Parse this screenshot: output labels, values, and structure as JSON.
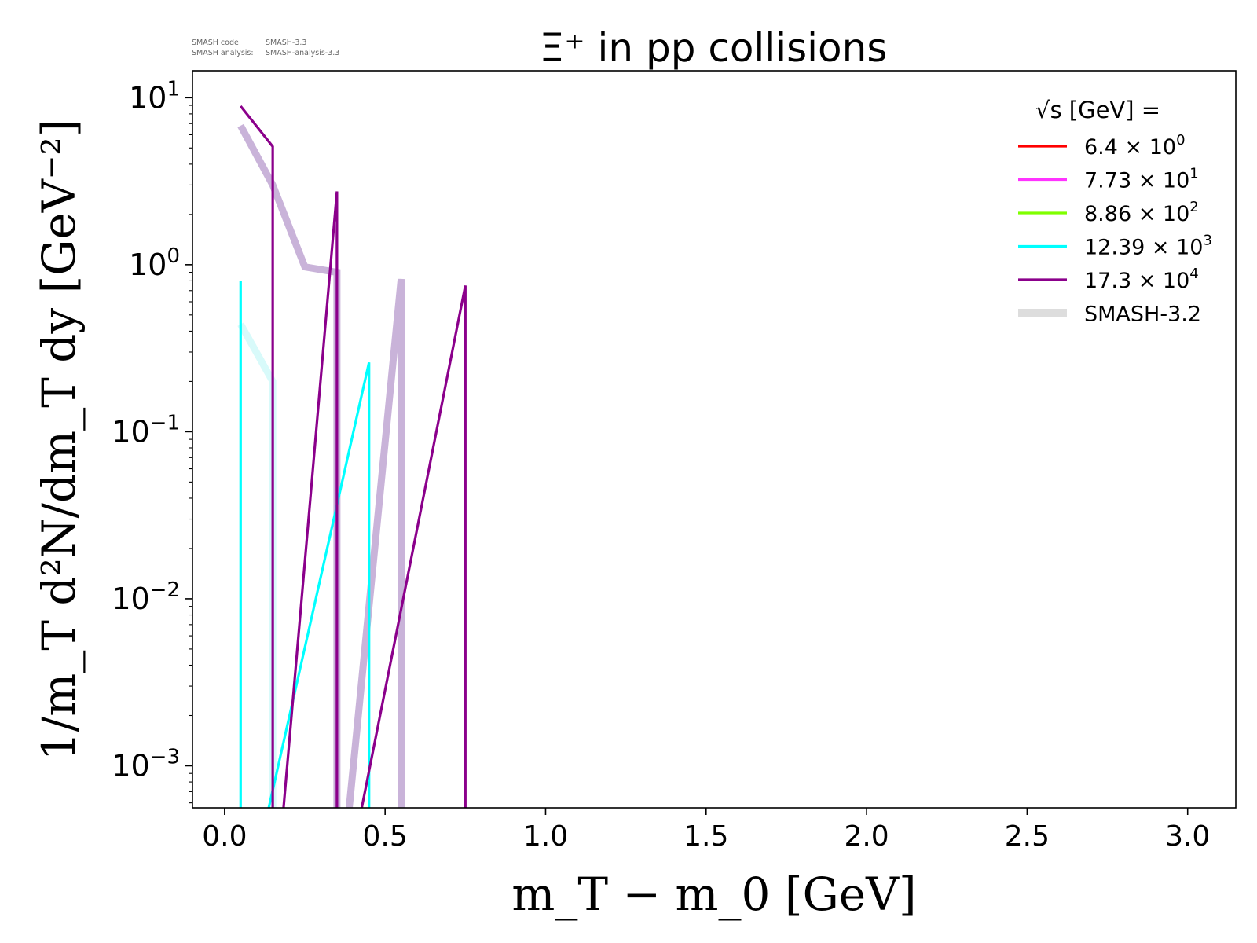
{
  "info": {
    "code_label": "SMASH code:",
    "code_value": "SMASH-3.3",
    "analysis_label": "SMASH analysis:",
    "analysis_value": "SMASH-analysis-3.3"
  },
  "chart_data": {
    "type": "line",
    "title": "Ξ⁺ in pp collisions",
    "xlabel": "m_T − m_0 [GeV]",
    "ylabel": "1/m_T d²N/dm_T dy [GeV⁻²]",
    "xlim": [
      -0.1,
      3.15
    ],
    "ylim": [
      0.00056,
      14.5
    ],
    "yscale": "log",
    "grid": false,
    "legend_placement": "top-right",
    "legend_title": "√s [GeV] =",
    "x_ticks": [
      {
        "value": 0.0,
        "label": "0.0"
      },
      {
        "value": 0.5,
        "label": "0.5"
      },
      {
        "value": 1.0,
        "label": "1.0"
      },
      {
        "value": 1.5,
        "label": "1.5"
      },
      {
        "value": 2.0,
        "label": "2.0"
      },
      {
        "value": 2.5,
        "label": "2.5"
      },
      {
        "value": 3.0,
        "label": "3.0"
      }
    ],
    "y_ticks": [
      {
        "value": 10,
        "base": "10",
        "exp": "1"
      },
      {
        "value": 1,
        "base": "10",
        "exp": "0"
      },
      {
        "value": 0.1,
        "base": "10",
        "exp": "−1"
      },
      {
        "value": 0.01,
        "base": "10",
        "exp": "−2"
      },
      {
        "value": 0.001,
        "base": "10",
        "exp": "−3"
      }
    ],
    "series": [
      {
        "name": "6.4 × 10⁰",
        "mantissa": "6.4",
        "exp": "0",
        "color": "#ff0000",
        "kind": "current",
        "points": []
      },
      {
        "name": "7.73 × 10¹",
        "mantissa": "7.73",
        "exp": "1",
        "color": "#ff33ff",
        "kind": "current",
        "points": []
      },
      {
        "name": "8.86 × 10²",
        "mantissa": "8.86",
        "exp": "2",
        "color": "#7fff00",
        "kind": "current",
        "points": []
      },
      {
        "name": "12.39 × 10³",
        "mantissa": "12.39",
        "exp": "3",
        "color": "#00ffff",
        "kind": "current",
        "points": [
          [
            0.05,
            0.8
          ],
          [
            0.05,
            0.0001
          ],
          [
            0.45,
            0.26
          ],
          [
            0.45,
            0.0001
          ]
        ]
      },
      {
        "name": "17.3 × 10⁴",
        "mantissa": "17.3",
        "exp": "4",
        "color": "#8b008b",
        "kind": "current",
        "points": [
          [
            0.05,
            8.9
          ],
          [
            0.15,
            5.1
          ],
          [
            0.15,
            0.0001
          ],
          [
            0.35,
            2.75
          ],
          [
            0.35,
            0.0001
          ],
          [
            0.75,
            0.75
          ],
          [
            0.75,
            0.0001
          ]
        ]
      }
    ],
    "reference_series": [
      {
        "name": "SMASH-3.2",
        "color": "#c9b3d9",
        "linewidth": 9,
        "points": [
          [
            0.05,
            6.8
          ],
          [
            0.15,
            3.0
          ],
          [
            0.25,
            0.97
          ],
          [
            0.35,
            0.9
          ],
          [
            0.35,
            0.0001
          ],
          [
            0.55,
            0.82
          ],
          [
            0.55,
            0.0001
          ]
        ]
      },
      {
        "name": "SMASH-3.2",
        "color": "#d8fafa",
        "linewidth": 9,
        "points": [
          [
            0.05,
            0.44
          ],
          [
            0.15,
            0.2
          ],
          [
            0.15,
            0.0001
          ]
        ]
      }
    ],
    "legend_reference": {
      "label": "SMASH-3.2",
      "color": "#dddddd"
    }
  }
}
